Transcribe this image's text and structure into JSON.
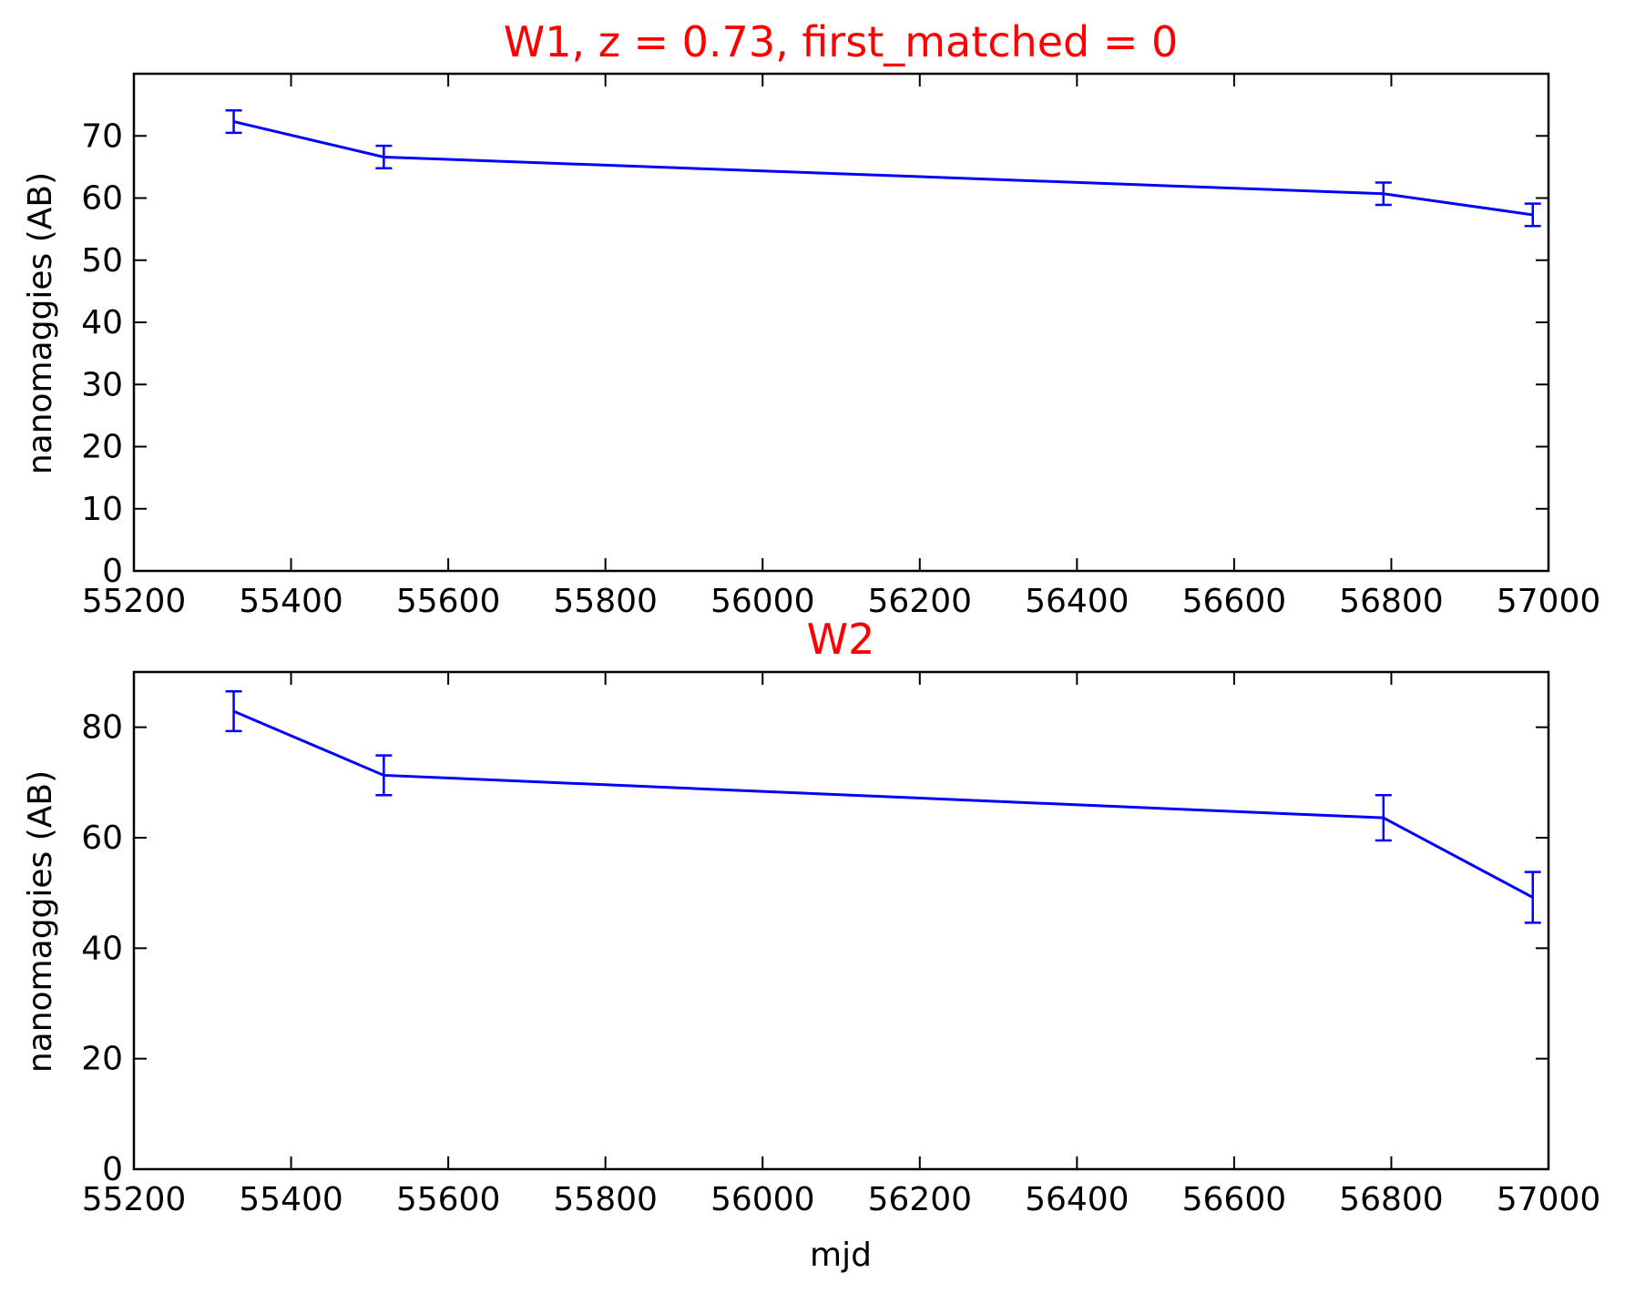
{
  "chart_data": [
    {
      "type": "line",
      "title": "W1, z = 0.73, first_matched = 0",
      "title_color": "#ff0000",
      "line_color": "#0000ff",
      "xlabel": "",
      "ylabel": "nanomaggies (AB)",
      "xlim": [
        55200,
        57000
      ],
      "ylim": [
        0,
        80
      ],
      "xticks": [
        55200,
        55400,
        55600,
        55800,
        56000,
        56200,
        56400,
        56600,
        56800,
        57000
      ],
      "yticks": [
        0,
        10,
        20,
        30,
        40,
        50,
        60,
        70
      ],
      "grid": false,
      "series": [
        {
          "x": [
            55327,
            55518,
            56790,
            56980
          ],
          "y": [
            72.3,
            66.6,
            60.7,
            57.3
          ],
          "yerr": [
            1.8,
            1.8,
            1.8,
            1.8
          ]
        }
      ]
    },
    {
      "type": "line",
      "title": "W2",
      "title_color": "#ff0000",
      "line_color": "#0000ff",
      "xlabel": "mjd",
      "ylabel": "nanomaggies (AB)",
      "xlim": [
        55200,
        57000
      ],
      "ylim": [
        0,
        90
      ],
      "xticks": [
        55200,
        55400,
        55600,
        55800,
        56000,
        56200,
        56400,
        56600,
        56800,
        57000
      ],
      "yticks": [
        0,
        20,
        40,
        60,
        80
      ],
      "grid": false,
      "series": [
        {
          "x": [
            55327,
            55518,
            56790,
            56980
          ],
          "y": [
            82.9,
            71.3,
            63.6,
            49.2
          ],
          "yerr": [
            3.6,
            3.6,
            4.1,
            4.6
          ]
        }
      ]
    }
  ]
}
